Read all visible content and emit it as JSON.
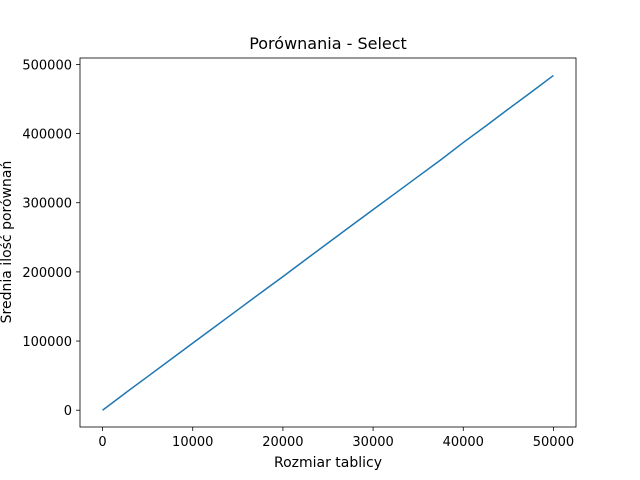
{
  "chart_data": {
    "type": "line",
    "title": "Porównania - Select",
    "xlabel": "Rozmiar tablicy",
    "ylabel": "Średnia ilość porównań",
    "xlim": [
      -2500,
      52500
    ],
    "ylim": [
      -24250,
      509250
    ],
    "x_ticks": [
      0,
      10000,
      20000,
      30000,
      40000,
      50000
    ],
    "y_ticks": [
      0,
      100000,
      200000,
      300000,
      400000,
      500000
    ],
    "x_tick_labels": [
      "0",
      "10000",
      "20000",
      "30000",
      "40000",
      "50000"
    ],
    "y_tick_labels": [
      "0",
      "100000",
      "200000",
      "300000",
      "400000",
      "500000"
    ],
    "grid": false,
    "series": [
      {
        "color": "#1f77b4",
        "x": [
          0,
          2500,
          5000,
          7500,
          10000,
          12500,
          15000,
          17500,
          20000,
          22500,
          25000,
          27500,
          30000,
          32500,
          35000,
          37500,
          40000,
          42500,
          45000,
          47500,
          50000
        ],
        "y": [
          0,
          24500,
          48700,
          72800,
          97000,
          121000,
          145200,
          169300,
          193200,
          217600,
          241800,
          266000,
          290000,
          314000,
          338000,
          362000,
          387000,
          411000,
          435500,
          459500,
          484000
        ]
      }
    ]
  }
}
